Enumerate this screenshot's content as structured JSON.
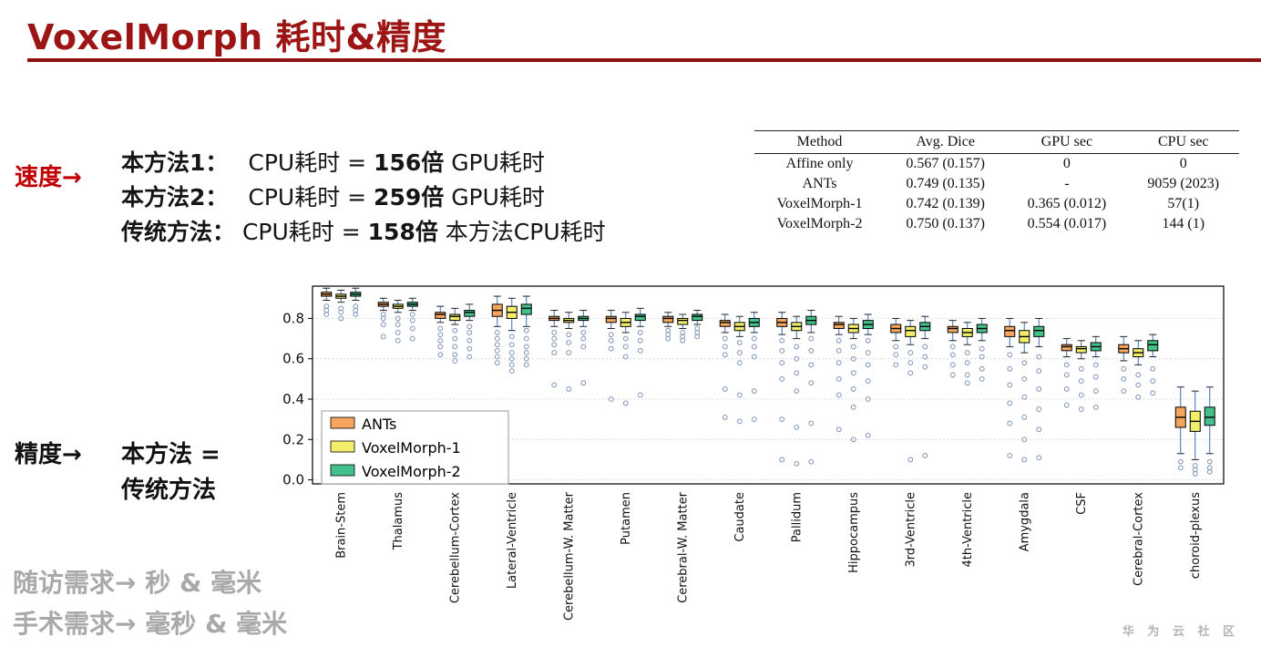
{
  "slide": {
    "title": "VoxelMorph 耗时&精度",
    "watermark": "华 为 云 社 区"
  },
  "speed": {
    "label": "速度→",
    "lines": [
      {
        "name": "本方法1：",
        "mid": "CPU耗时 =",
        "times": "156倍",
        "tail": "GPU耗时"
      },
      {
        "name": "本方法2：",
        "mid": "CPU耗时 =",
        "times": "259倍",
        "tail": "GPU耗时"
      },
      {
        "name": "传统方法：",
        "mid": "CPU耗时 =",
        "times": "158倍",
        "tail": "本方法CPU耗时"
      }
    ]
  },
  "accuracy": {
    "label": "精度→",
    "line1": "本方法 =",
    "line2": "传统方法"
  },
  "notes": [
    "随访需求→ 秒 & 毫米",
    "手术需求→ 毫秒 & 毫米"
  ],
  "table": {
    "headers": [
      "Method",
      "Avg. Dice",
      "GPU sec",
      "CPU sec"
    ],
    "rows": [
      [
        "Affine only",
        "0.567 (0.157)",
        "0",
        "0"
      ],
      [
        "ANTs",
        "0.749 (0.135)",
        "-",
        "9059 (2023)"
      ],
      [
        "VoxelMorph-1",
        "0.742 (0.139)",
        "0.365 (0.012)",
        "57(1)"
      ],
      [
        "VoxelMorph-2",
        "0.750 (0.137)",
        "0.554 (0.017)",
        "144 (1)"
      ]
    ]
  },
  "chart_data": {
    "type": "boxplot",
    "ylim": [
      -0.02,
      0.96
    ],
    "yticks": [
      0.0,
      0.2,
      0.4,
      0.6,
      0.8
    ],
    "grid": "horizontal-dotted",
    "legend_position": "lower-left-inside",
    "whisker_color": "#3a6fb7",
    "outlier_color": "#7e93b8",
    "categories": [
      "Brain-Stem",
      "Thalamus",
      "Cerebellum-Cortex",
      "Lateral-Ventricle",
      "Cerebellum-W. Matter",
      "Putamen",
      "Cerebral-W. Matter",
      "Caudate",
      "Pallidum",
      "Hippocampus",
      "3rd-Ventricle",
      "4th-Ventricle",
      "Amygdala",
      "CSF",
      "Cerebral-Cortex",
      "choroid-plexus"
    ],
    "series": [
      {
        "name": "ANTs",
        "color": "#f4a55e",
        "boxes": [
          [
            0.89,
            0.91,
            0.92,
            0.93,
            0.95
          ],
          [
            0.84,
            0.86,
            0.87,
            0.88,
            0.9
          ],
          [
            0.78,
            0.8,
            0.82,
            0.83,
            0.86
          ],
          [
            0.76,
            0.81,
            0.84,
            0.87,
            0.91
          ],
          [
            0.76,
            0.79,
            0.8,
            0.81,
            0.84
          ],
          [
            0.75,
            0.78,
            0.8,
            0.81,
            0.84
          ],
          [
            0.76,
            0.78,
            0.8,
            0.81,
            0.83
          ],
          [
            0.73,
            0.76,
            0.78,
            0.79,
            0.82
          ],
          [
            0.72,
            0.76,
            0.78,
            0.8,
            0.83
          ],
          [
            0.72,
            0.75,
            0.77,
            0.78,
            0.81
          ],
          [
            0.69,
            0.73,
            0.75,
            0.77,
            0.8
          ],
          [
            0.69,
            0.73,
            0.75,
            0.76,
            0.79
          ],
          [
            0.66,
            0.71,
            0.74,
            0.76,
            0.8
          ],
          [
            0.61,
            0.64,
            0.66,
            0.67,
            0.7
          ],
          [
            0.59,
            0.63,
            0.65,
            0.67,
            0.71
          ],
          [
            0.13,
            0.26,
            0.31,
            0.36,
            0.46
          ]
        ],
        "outliers": [
          [
            0.86,
            0.84,
            0.82
          ],
          [
            0.82,
            0.8,
            0.77,
            0.71
          ],
          [
            0.75,
            0.72,
            0.69,
            0.66,
            0.62
          ],
          [
            0.73,
            0.7,
            0.67,
            0.64,
            0.61,
            0.58
          ],
          [
            0.73,
            0.7,
            0.67,
            0.63,
            0.47
          ],
          [
            0.72,
            0.69,
            0.65,
            0.4
          ],
          [
            0.74,
            0.72,
            0.7
          ],
          [
            0.7,
            0.66,
            0.62,
            0.45,
            0.31
          ],
          [
            0.69,
            0.64,
            0.58,
            0.5,
            0.3,
            0.1
          ],
          [
            0.69,
            0.64,
            0.58,
            0.5,
            0.42,
            0.25
          ],
          [
            0.66,
            0.62,
            0.57
          ],
          [
            0.66,
            0.62,
            0.57,
            0.52
          ],
          [
            0.62,
            0.55,
            0.47,
            0.38,
            0.28,
            0.12
          ],
          [
            0.57,
            0.52,
            0.45,
            0.37
          ],
          [
            0.55,
            0.5,
            0.44
          ],
          [
            0.09,
            0.06
          ]
        ]
      },
      {
        "name": "VoxelMorph-1",
        "color": "#f2ee6a",
        "boxes": [
          [
            0.88,
            0.9,
            0.91,
            0.92,
            0.94
          ],
          [
            0.83,
            0.85,
            0.86,
            0.87,
            0.89
          ],
          [
            0.77,
            0.79,
            0.81,
            0.82,
            0.85
          ],
          [
            0.74,
            0.8,
            0.83,
            0.86,
            0.9
          ],
          [
            0.75,
            0.78,
            0.79,
            0.8,
            0.83
          ],
          [
            0.73,
            0.76,
            0.78,
            0.8,
            0.83
          ],
          [
            0.75,
            0.77,
            0.79,
            0.8,
            0.82
          ],
          [
            0.71,
            0.74,
            0.76,
            0.78,
            0.81
          ],
          [
            0.7,
            0.74,
            0.76,
            0.78,
            0.81
          ],
          [
            0.7,
            0.73,
            0.75,
            0.77,
            0.8
          ],
          [
            0.67,
            0.71,
            0.74,
            0.76,
            0.79
          ],
          [
            0.67,
            0.71,
            0.73,
            0.75,
            0.78
          ],
          [
            0.63,
            0.68,
            0.71,
            0.74,
            0.78
          ],
          [
            0.6,
            0.63,
            0.65,
            0.66,
            0.69
          ],
          [
            0.57,
            0.61,
            0.63,
            0.65,
            0.69
          ],
          [
            0.1,
            0.24,
            0.29,
            0.34,
            0.44
          ]
        ],
        "outliers": [
          [
            0.85,
            0.83,
            0.8
          ],
          [
            0.8,
            0.77,
            0.73,
            0.69
          ],
          [
            0.74,
            0.7,
            0.66,
            0.62,
            0.59
          ],
          [
            0.71,
            0.67,
            0.63,
            0.6,
            0.57,
            0.54
          ],
          [
            0.72,
            0.68,
            0.63,
            0.45
          ],
          [
            0.7,
            0.66,
            0.61,
            0.38
          ],
          [
            0.73,
            0.71,
            0.69
          ],
          [
            0.68,
            0.63,
            0.58,
            0.42,
            0.29
          ],
          [
            0.66,
            0.6,
            0.53,
            0.44,
            0.26,
            0.08
          ],
          [
            0.66,
            0.6,
            0.53,
            0.45,
            0.36,
            0.2
          ],
          [
            0.63,
            0.58,
            0.53,
            0.1
          ],
          [
            0.63,
            0.58,
            0.52,
            0.48
          ],
          [
            0.58,
            0.5,
            0.41,
            0.31,
            0.2,
            0.1
          ],
          [
            0.55,
            0.49,
            0.42,
            0.35
          ],
          [
            0.52,
            0.47,
            0.41
          ],
          [
            0.07,
            0.05,
            0.03
          ]
        ]
      },
      {
        "name": "VoxelMorph-2",
        "color": "#44c08a",
        "boxes": [
          [
            0.89,
            0.91,
            0.92,
            0.93,
            0.95
          ],
          [
            0.84,
            0.86,
            0.87,
            0.88,
            0.9
          ],
          [
            0.79,
            0.81,
            0.83,
            0.84,
            0.87
          ],
          [
            0.76,
            0.82,
            0.85,
            0.87,
            0.91
          ],
          [
            0.76,
            0.79,
            0.8,
            0.81,
            0.84
          ],
          [
            0.76,
            0.79,
            0.81,
            0.82,
            0.85
          ],
          [
            0.77,
            0.79,
            0.81,
            0.82,
            0.84
          ],
          [
            0.73,
            0.76,
            0.78,
            0.8,
            0.83
          ],
          [
            0.73,
            0.77,
            0.79,
            0.81,
            0.84
          ],
          [
            0.72,
            0.75,
            0.77,
            0.79,
            0.82
          ],
          [
            0.7,
            0.74,
            0.76,
            0.78,
            0.81
          ],
          [
            0.69,
            0.73,
            0.75,
            0.77,
            0.8
          ],
          [
            0.66,
            0.71,
            0.74,
            0.76,
            0.8
          ],
          [
            0.61,
            0.64,
            0.66,
            0.68,
            0.71
          ],
          [
            0.61,
            0.64,
            0.67,
            0.69,
            0.72
          ],
          [
            0.13,
            0.27,
            0.31,
            0.36,
            0.46
          ]
        ],
        "outliers": [
          [
            0.86,
            0.84,
            0.82
          ],
          [
            0.82,
            0.79,
            0.75,
            0.7
          ],
          [
            0.76,
            0.73,
            0.69,
            0.65,
            0.61
          ],
          [
            0.74,
            0.7,
            0.66,
            0.63,
            0.6,
            0.57
          ],
          [
            0.73,
            0.7,
            0.66,
            0.48
          ],
          [
            0.73,
            0.69,
            0.64,
            0.42
          ],
          [
            0.75,
            0.73,
            0.71
          ],
          [
            0.7,
            0.66,
            0.61,
            0.44,
            0.3
          ],
          [
            0.7,
            0.64,
            0.57,
            0.48,
            0.28,
            0.09
          ],
          [
            0.69,
            0.63,
            0.57,
            0.49,
            0.4,
            0.22
          ],
          [
            0.66,
            0.61,
            0.56,
            0.12
          ],
          [
            0.65,
            0.61,
            0.55,
            0.5
          ],
          [
            0.61,
            0.54,
            0.45,
            0.35,
            0.25,
            0.11
          ],
          [
            0.57,
            0.51,
            0.44,
            0.36
          ],
          [
            0.55,
            0.49,
            0.43
          ],
          [
            0.09,
            0.06,
            0.04
          ]
        ]
      }
    ]
  }
}
